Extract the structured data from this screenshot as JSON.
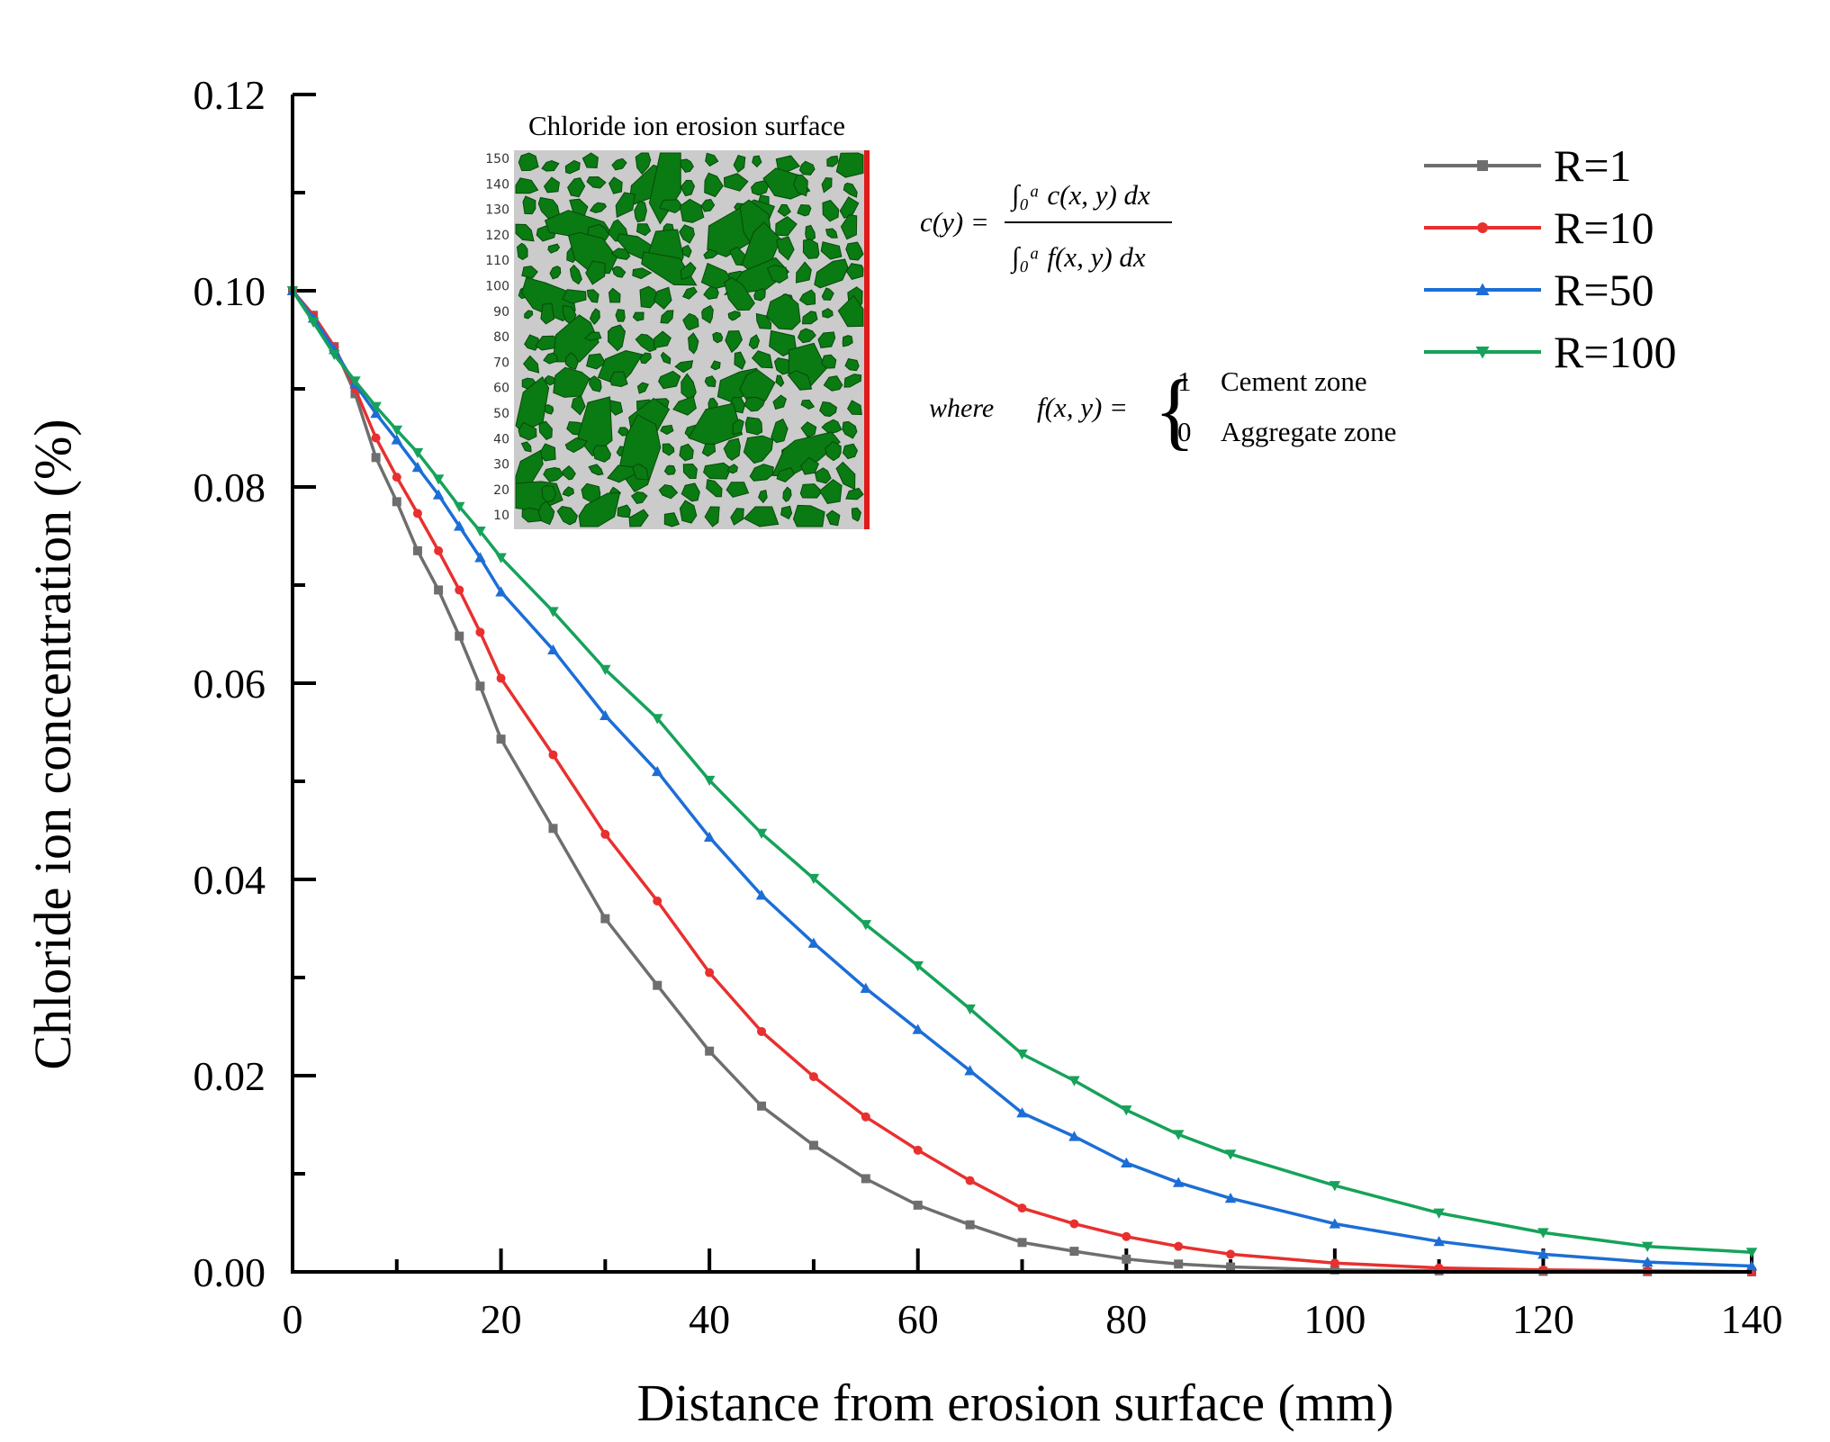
{
  "chart_data": {
    "type": "line",
    "xlabel": "Distance from erosion surface  (mm)",
    "ylabel": "Chloride ion concentration  (%)",
    "xlim": [
      0,
      140
    ],
    "ylim": [
      0,
      0.12
    ],
    "x_ticks": [
      "0",
      "20",
      "40",
      "60",
      "80",
      "100",
      "120",
      "140"
    ],
    "y_ticks": [
      "0.00",
      "0.02",
      "0.04",
      "0.06",
      "0.08",
      "0.10",
      "0.12"
    ],
    "legend_position": "top-right",
    "series": [
      {
        "name": "R=1",
        "color": "#6e6e6e",
        "marker": "square",
        "x": [
          0,
          2,
          4,
          6,
          8,
          10,
          12,
          14,
          16,
          18,
          20,
          25,
          30,
          35,
          40,
          45,
          50,
          55,
          60,
          65,
          70,
          75,
          80,
          85,
          90,
          100,
          110,
          120,
          130,
          140
        ],
        "values": [
          0.1,
          0.0975,
          0.0943,
          0.0895,
          0.083,
          0.0785,
          0.0735,
          0.0695,
          0.0648,
          0.0597,
          0.0543,
          0.0452,
          0.036,
          0.0292,
          0.0225,
          0.0169,
          0.0129,
          0.0095,
          0.0068,
          0.0048,
          0.003,
          0.0021,
          0.0013,
          0.0008,
          0.0005,
          0.0002,
          0.0001,
          5e-05,
          2e-05,
          0.0
        ]
      },
      {
        "name": "R=10",
        "color": "#e8302f",
        "marker": "circle",
        "x": [
          0,
          2,
          4,
          6,
          8,
          10,
          12,
          14,
          16,
          18,
          20,
          25,
          30,
          35,
          40,
          45,
          50,
          55,
          60,
          65,
          70,
          75,
          80,
          85,
          90,
          100,
          110,
          120,
          130,
          140
        ],
        "values": [
          0.1,
          0.0975,
          0.0943,
          0.09,
          0.085,
          0.081,
          0.0773,
          0.0735,
          0.0695,
          0.0652,
          0.0605,
          0.0527,
          0.0446,
          0.0378,
          0.0305,
          0.0245,
          0.0199,
          0.0158,
          0.0124,
          0.0093,
          0.0065,
          0.0049,
          0.0036,
          0.0026,
          0.0018,
          0.0009,
          0.0004,
          0.0002,
          0.0001,
          3e-05
        ]
      },
      {
        "name": "R=50",
        "color": "#1c6ed6",
        "marker": "triangle-up",
        "x": [
          0,
          2,
          4,
          6,
          8,
          10,
          12,
          14,
          16,
          18,
          20,
          25,
          30,
          35,
          40,
          45,
          50,
          55,
          60,
          65,
          70,
          75,
          80,
          85,
          90,
          100,
          110,
          120,
          130,
          140
        ],
        "values": [
          0.1,
          0.0972,
          0.094,
          0.0905,
          0.0875,
          0.0848,
          0.082,
          0.0792,
          0.076,
          0.0728,
          0.0693,
          0.0634,
          0.0567,
          0.051,
          0.0443,
          0.0384,
          0.0335,
          0.0289,
          0.0247,
          0.0205,
          0.0162,
          0.0138,
          0.0111,
          0.0091,
          0.0075,
          0.0049,
          0.0031,
          0.0018,
          0.001,
          0.0006
        ]
      },
      {
        "name": "R=100",
        "color": "#16a25a",
        "marker": "triangle-down",
        "x": [
          0,
          2,
          4,
          6,
          8,
          10,
          12,
          14,
          16,
          18,
          20,
          25,
          30,
          35,
          40,
          45,
          50,
          55,
          60,
          65,
          70,
          75,
          80,
          85,
          90,
          100,
          110,
          120,
          130,
          140
        ],
        "values": [
          0.1,
          0.0968,
          0.0935,
          0.0908,
          0.0882,
          0.0858,
          0.0835,
          0.0808,
          0.078,
          0.0755,
          0.0728,
          0.0673,
          0.0614,
          0.0564,
          0.0501,
          0.0447,
          0.0401,
          0.0354,
          0.0312,
          0.0268,
          0.0222,
          0.0195,
          0.0165,
          0.014,
          0.012,
          0.0088,
          0.006,
          0.004,
          0.0026,
          0.002
        ]
      }
    ],
    "inset": {
      "title": "Chloride ion erosion surface",
      "y_ticks": [
        "150",
        "140",
        "130",
        "120",
        "110",
        "100",
        "90",
        "80",
        "70",
        "60",
        "50",
        "40",
        "30",
        "20",
        "10"
      ],
      "background_color": "#cbcbcb",
      "aggregate_color": "#0a7a12",
      "edge_color": "#e01a1a"
    },
    "equation": {
      "lhs": "c(y) =",
      "numerator": "∫₀ᵃ c(x, y) dx",
      "denominator": "∫₀ᵃ f(x, y) dx",
      "where": "where",
      "f_def": "f(x, y) =",
      "case1_value": "1",
      "case1_label": "Cement zone",
      "case2_value": "0",
      "case2_label": "Aggregate zone"
    }
  }
}
